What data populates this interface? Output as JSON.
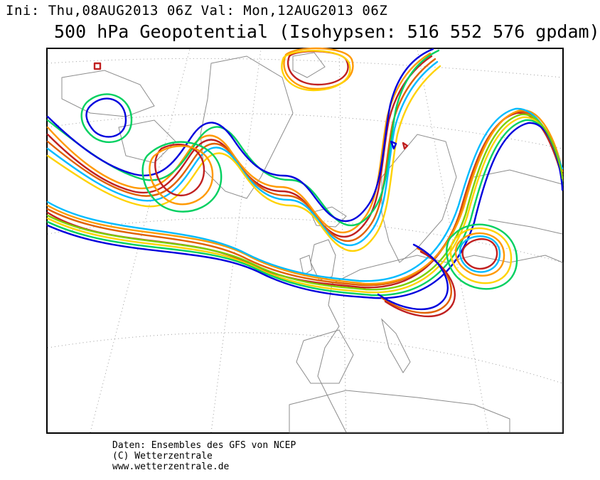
{
  "header": {
    "init_label": "Ini: Thu,08AUG2013 06Z Val: Mon,12AUG2013 06Z",
    "title": "500 hPa Geopotential (Isohypsen: 516 552 576 gpdam)"
  },
  "credits": {
    "line1": "Daten: Ensembles des GFS von NCEP",
    "line2": "(C) Wetterzentrale",
    "line3": "www.wetterzentrale.de"
  },
  "map": {
    "ensemble_colors": [
      "#0000dd",
      "#00bbff",
      "#00d060",
      "#7ad000",
      "#ffd200",
      "#ff9900",
      "#e06000",
      "#c02020"
    ],
    "coastline_color": "#8c8c8c",
    "grid_color": "#9a9a9a"
  }
}
